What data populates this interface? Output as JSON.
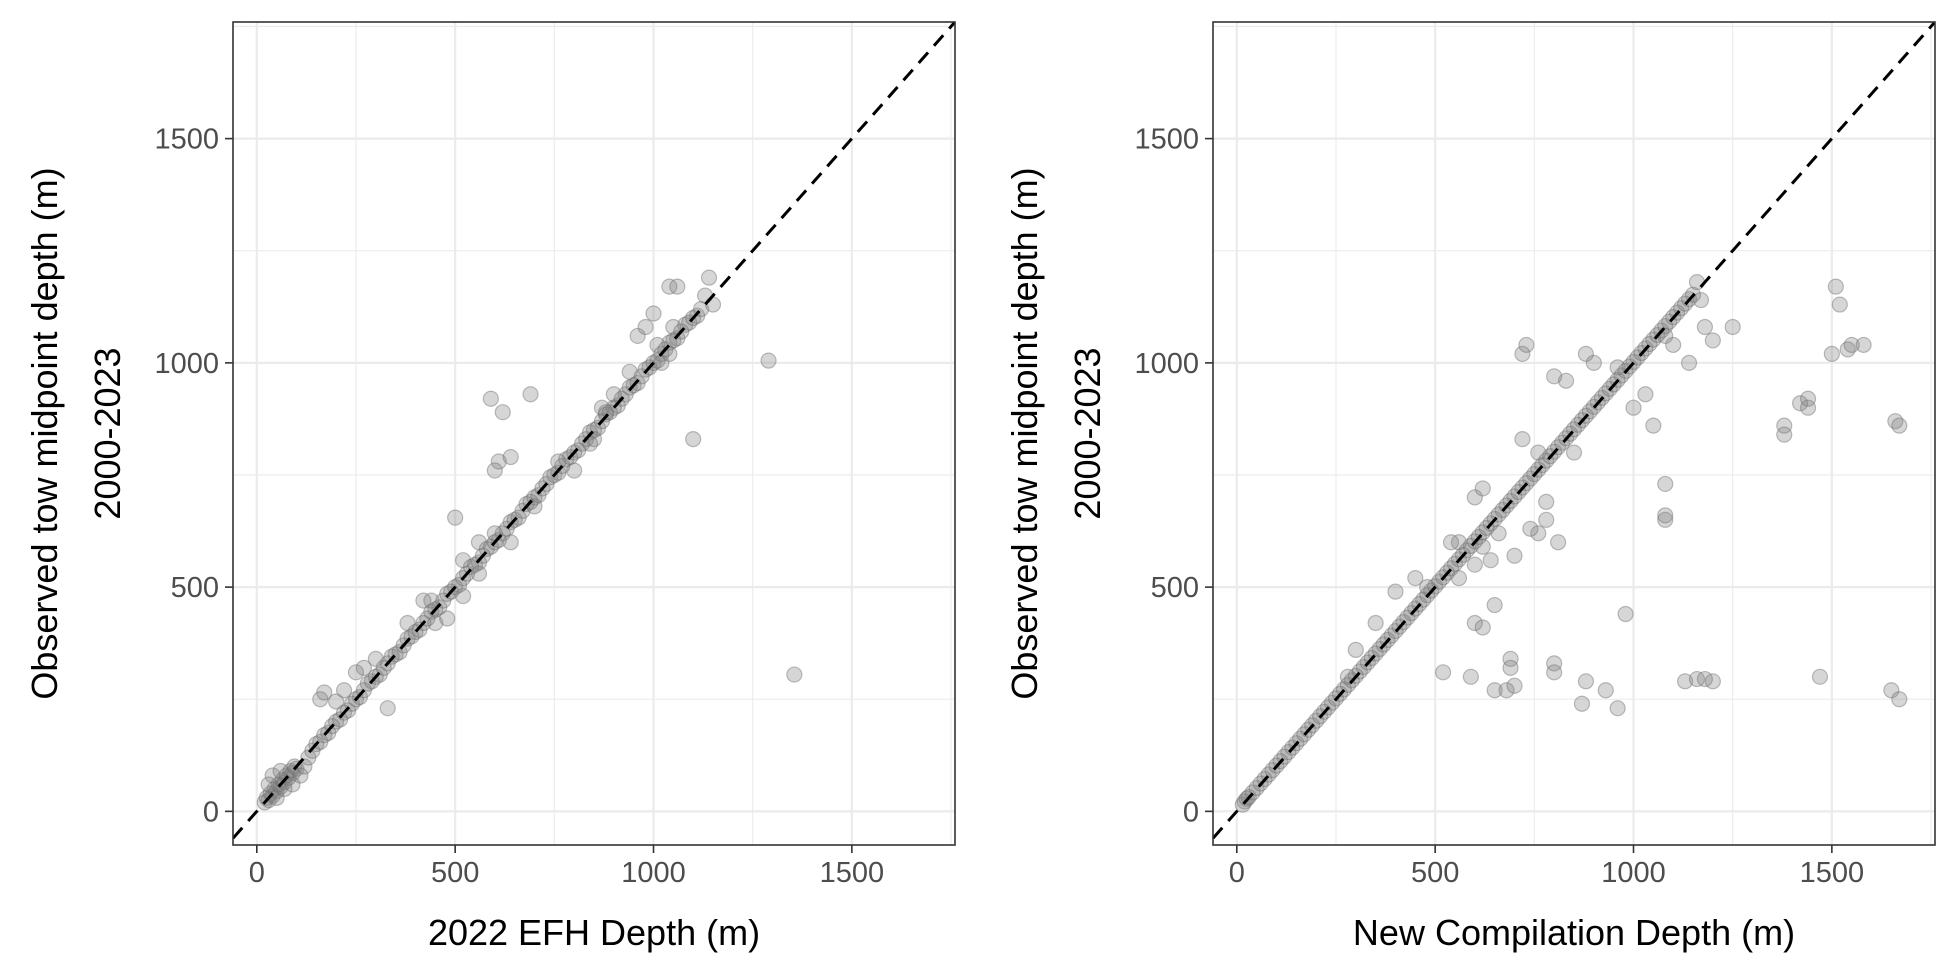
{
  "chart_data": [
    {
      "type": "scatter",
      "title": "",
      "xlabel": "2022 EFH Depth (m)",
      "ylabel_lines": [
        "Observed tow midpoint depth (m)",
        "2000-2023"
      ],
      "xlim": [
        -60,
        1760
      ],
      "ylim": [
        -75,
        1760
      ],
      "xticks": [
        0,
        500,
        1000,
        1500
      ],
      "yticks": [
        0,
        500,
        1000,
        1500
      ],
      "grid": true,
      "reference_line": "y = x (dashed)",
      "point_color": "#808080",
      "points": [
        [
          20,
          20
        ],
        [
          25,
          30
        ],
        [
          30,
          25
        ],
        [
          35,
          40
        ],
        [
          40,
          35
        ],
        [
          45,
          50
        ],
        [
          50,
          45
        ],
        [
          55,
          60
        ],
        [
          60,
          55
        ],
        [
          65,
          70
        ],
        [
          70,
          65
        ],
        [
          75,
          80
        ],
        [
          80,
          75
        ],
        [
          85,
          90
        ],
        [
          90,
          85
        ],
        [
          95,
          100
        ],
        [
          100,
          95
        ],
        [
          30,
          60
        ],
        [
          40,
          80
        ],
        [
          60,
          90
        ],
        [
          50,
          30
        ],
        [
          70,
          50
        ],
        [
          90,
          60
        ],
        [
          110,
          80
        ],
        [
          120,
          100
        ],
        [
          130,
          120
        ],
        [
          140,
          135
        ],
        [
          150,
          150
        ],
        [
          160,
          155
        ],
        [
          170,
          170
        ],
        [
          180,
          175
        ],
        [
          190,
          190
        ],
        [
          200,
          200
        ],
        [
          210,
          205
        ],
        [
          220,
          220
        ],
        [
          230,
          225
        ],
        [
          240,
          240
        ],
        [
          250,
          250
        ],
        [
          200,
          245
        ],
        [
          220,
          270
        ],
        [
          160,
          250
        ],
        [
          170,
          265
        ],
        [
          260,
          255
        ],
        [
          270,
          270
        ],
        [
          280,
          285
        ],
        [
          290,
          290
        ],
        [
          300,
          300
        ],
        [
          310,
          305
        ],
        [
          320,
          320
        ],
        [
          330,
          330
        ],
        [
          340,
          345
        ],
        [
          350,
          350
        ],
        [
          360,
          355
        ],
        [
          370,
          370
        ],
        [
          380,
          385
        ],
        [
          390,
          390
        ],
        [
          400,
          400
        ],
        [
          410,
          405
        ],
        [
          420,
          420
        ],
        [
          430,
          430
        ],
        [
          440,
          445
        ],
        [
          450,
          450
        ],
        [
          460,
          455
        ],
        [
          470,
          470
        ],
        [
          480,
          485
        ],
        [
          490,
          490
        ],
        [
          500,
          500
        ],
        [
          510,
          505
        ],
        [
          520,
          520
        ],
        [
          530,
          530
        ],
        [
          540,
          545
        ],
        [
          550,
          550
        ],
        [
          560,
          555
        ],
        [
          570,
          570
        ],
        [
          580,
          585
        ],
        [
          590,
          590
        ],
        [
          600,
          600
        ],
        [
          610,
          605
        ],
        [
          620,
          620
        ],
        [
          630,
          630
        ],
        [
          640,
          645
        ],
        [
          650,
          650
        ],
        [
          660,
          655
        ],
        [
          670,
          670
        ],
        [
          680,
          685
        ],
        [
          690,
          690
        ],
        [
          700,
          700
        ],
        [
          710,
          705
        ],
        [
          720,
          720
        ],
        [
          730,
          730
        ],
        [
          740,
          745
        ],
        [
          750,
          750
        ],
        [
          760,
          755
        ],
        [
          770,
          770
        ],
        [
          780,
          785
        ],
        [
          790,
          790
        ],
        [
          800,
          800
        ],
        [
          810,
          805
        ],
        [
          820,
          820
        ],
        [
          830,
          830
        ],
        [
          840,
          845
        ],
        [
          850,
          850
        ],
        [
          860,
          855
        ],
        [
          870,
          870
        ],
        [
          880,
          885
        ],
        [
          890,
          890
        ],
        [
          900,
          900
        ],
        [
          910,
          905
        ],
        [
          920,
          920
        ],
        [
          930,
          930
        ],
        [
          940,
          945
        ],
        [
          950,
          950
        ],
        [
          960,
          955
        ],
        [
          970,
          970
        ],
        [
          980,
          985
        ],
        [
          990,
          990
        ],
        [
          1000,
          1000
        ],
        [
          1010,
          1005
        ],
        [
          1020,
          1020
        ],
        [
          1030,
          1030
        ],
        [
          1040,
          1045
        ],
        [
          1050,
          1050
        ],
        [
          1060,
          1055
        ],
        [
          1070,
          1070
        ],
        [
          1080,
          1085
        ],
        [
          1090,
          1090
        ],
        [
          1100,
          1100
        ],
        [
          1110,
          1105
        ],
        [
          1120,
          1120
        ],
        [
          1130,
          1150
        ],
        [
          1140,
          1190
        ],
        [
          1150,
          1130
        ],
        [
          330,
          230
        ],
        [
          500,
          655
        ],
        [
          590,
          920
        ],
        [
          610,
          780
        ],
        [
          640,
          790
        ],
        [
          690,
          930
        ],
        [
          600,
          760
        ],
        [
          620,
          890
        ],
        [
          850,
          830
        ],
        [
          880,
          890
        ],
        [
          960,
          1060
        ],
        [
          980,
          1080
        ],
        [
          1000,
          1110
        ],
        [
          1040,
          1170
        ],
        [
          1060,
          1170
        ],
        [
          1100,
          830
        ],
        [
          1290,
          1005
        ],
        [
          1355,
          305
        ],
        [
          1020,
          1000
        ],
        [
          1040,
          1020
        ],
        [
          1010,
          1040
        ],
        [
          1050,
          1080
        ],
        [
          450,
          420
        ],
        [
          480,
          430
        ],
        [
          520,
          480
        ],
        [
          560,
          530
        ],
        [
          420,
          470
        ],
        [
          380,
          420
        ],
        [
          300,
          340
        ],
        [
          270,
          320
        ],
        [
          250,
          310
        ],
        [
          440,
          470
        ],
        [
          520,
          560
        ],
        [
          560,
          600
        ],
        [
          600,
          620
        ],
        [
          640,
          600
        ],
        [
          700,
          680
        ],
        [
          760,
          780
        ],
        [
          800,
          760
        ],
        [
          840,
          820
        ],
        [
          870,
          900
        ],
        [
          900,
          930
        ],
        [
          940,
          980
        ]
      ]
    },
    {
      "type": "scatter",
      "title": "",
      "xlabel": "New Compilation Depth (m)",
      "ylabel_lines": [
        "Observed tow midpoint depth (m)",
        "2000-2023"
      ],
      "xlim": [
        -60,
        1760
      ],
      "ylim": [
        -75,
        1760
      ],
      "xticks": [
        0,
        500,
        1000,
        1500
      ],
      "yticks": [
        0,
        500,
        1000,
        1500
      ],
      "grid": true,
      "reference_line": "y = x (dashed)",
      "point_color": "#808080",
      "points": [
        [
          15,
          15
        ],
        [
          20,
          22
        ],
        [
          25,
          28
        ],
        [
          30,
          32
        ],
        [
          40,
          42
        ],
        [
          50,
          52
        ],
        [
          60,
          62
        ],
        [
          70,
          72
        ],
        [
          80,
          82
        ],
        [
          90,
          92
        ],
        [
          100,
          102
        ],
        [
          110,
          112
        ],
        [
          120,
          122
        ],
        [
          130,
          132
        ],
        [
          140,
          142
        ],
        [
          150,
          152
        ],
        [
          160,
          162
        ],
        [
          170,
          172
        ],
        [
          180,
          182
        ],
        [
          190,
          192
        ],
        [
          200,
          202
        ],
        [
          210,
          212
        ],
        [
          220,
          222
        ],
        [
          230,
          232
        ],
        [
          240,
          242
        ],
        [
          250,
          252
        ],
        [
          260,
          262
        ],
        [
          270,
          272
        ],
        [
          280,
          282
        ],
        [
          290,
          292
        ],
        [
          300,
          302
        ],
        [
          310,
          312
        ],
        [
          320,
          322
        ],
        [
          330,
          332
        ],
        [
          340,
          342
        ],
        [
          350,
          352
        ],
        [
          360,
          362
        ],
        [
          370,
          372
        ],
        [
          380,
          382
        ],
        [
          390,
          392
        ],
        [
          400,
          402
        ],
        [
          410,
          412
        ],
        [
          420,
          422
        ],
        [
          430,
          432
        ],
        [
          440,
          442
        ],
        [
          450,
          452
        ],
        [
          460,
          462
        ],
        [
          470,
          472
        ],
        [
          480,
          482
        ],
        [
          490,
          492
        ],
        [
          500,
          502
        ],
        [
          510,
          512
        ],
        [
          520,
          522
        ],
        [
          530,
          532
        ],
        [
          540,
          542
        ],
        [
          550,
          552
        ],
        [
          560,
          562
        ],
        [
          570,
          572
        ],
        [
          580,
          582
        ],
        [
          590,
          592
        ],
        [
          600,
          602
        ],
        [
          610,
          612
        ],
        [
          620,
          622
        ],
        [
          630,
          632
        ],
        [
          640,
          642
        ],
        [
          650,
          652
        ],
        [
          660,
          662
        ],
        [
          670,
          672
        ],
        [
          680,
          682
        ],
        [
          690,
          692
        ],
        [
          700,
          702
        ],
        [
          710,
          712
        ],
        [
          720,
          722
        ],
        [
          730,
          732
        ],
        [
          740,
          742
        ],
        [
          750,
          752
        ],
        [
          760,
          762
        ],
        [
          770,
          772
        ],
        [
          780,
          782
        ],
        [
          790,
          792
        ],
        [
          800,
          802
        ],
        [
          810,
          812
        ],
        [
          820,
          822
        ],
        [
          830,
          832
        ],
        [
          840,
          842
        ],
        [
          850,
          852
        ],
        [
          860,
          862
        ],
        [
          870,
          872
        ],
        [
          880,
          882
        ],
        [
          890,
          892
        ],
        [
          900,
          902
        ],
        [
          910,
          912
        ],
        [
          920,
          922
        ],
        [
          930,
          932
        ],
        [
          940,
          942
        ],
        [
          950,
          952
        ],
        [
          960,
          962
        ],
        [
          970,
          972
        ],
        [
          980,
          982
        ],
        [
          990,
          992
        ],
        [
          1000,
          1002
        ],
        [
          1010,
          1012
        ],
        [
          1020,
          1022
        ],
        [
          1030,
          1032
        ],
        [
          1040,
          1042
        ],
        [
          1050,
          1052
        ],
        [
          1060,
          1062
        ],
        [
          1070,
          1072
        ],
        [
          1080,
          1082
        ],
        [
          1090,
          1092
        ],
        [
          1100,
          1102
        ],
        [
          1110,
          1112
        ],
        [
          1120,
          1122
        ],
        [
          1130,
          1132
        ],
        [
          1140,
          1142
        ],
        [
          1150,
          1152
        ],
        [
          1160,
          1180
        ],
        [
          1170,
          1140
        ],
        [
          1200,
          1050
        ],
        [
          1250,
          1080
        ],
        [
          1180,
          1080
        ],
        [
          1080,
          1060
        ],
        [
          1100,
          1040
        ],
        [
          1140,
          1000
        ],
        [
          720,
          1020
        ],
        [
          730,
          1040
        ],
        [
          800,
          970
        ],
        [
          830,
          960
        ],
        [
          880,
          1020
        ],
        [
          900,
          1000
        ],
        [
          960,
          990
        ],
        [
          720,
          830
        ],
        [
          760,
          800
        ],
        [
          850,
          800
        ],
        [
          1000,
          900
        ],
        [
          1030,
          930
        ],
        [
          1050,
          860
        ],
        [
          1080,
          730
        ],
        [
          1080,
          650
        ],
        [
          1080,
          660
        ],
        [
          980,
          440
        ],
        [
          930,
          270
        ],
        [
          960,
          230
        ],
        [
          880,
          290
        ],
        [
          870,
          240
        ],
        [
          800,
          330
        ],
        [
          800,
          310
        ],
        [
          690,
          340
        ],
        [
          690,
          320
        ],
        [
          650,
          460
        ],
        [
          600,
          420
        ],
        [
          590,
          300
        ],
        [
          620,
          410
        ],
        [
          650,
          270
        ],
        [
          680,
          270
        ],
        [
          700,
          280
        ],
        [
          520,
          310
        ],
        [
          760,
          620
        ],
        [
          780,
          650
        ],
        [
          700,
          570
        ],
        [
          740,
          630
        ],
        [
          780,
          690
        ],
        [
          810,
          600
        ],
        [
          1130,
          290
        ],
        [
          1160,
          295
        ],
        [
          1180,
          295
        ],
        [
          1200,
          290
        ],
        [
          1380,
          860
        ],
        [
          1380,
          840
        ],
        [
          1420,
          910
        ],
        [
          1440,
          920
        ],
        [
          1440,
          900
        ],
        [
          1510,
          1170
        ],
        [
          1520,
          1130
        ],
        [
          1500,
          1020
        ],
        [
          1540,
          1030
        ],
        [
          1550,
          1040
        ],
        [
          1580,
          1040
        ],
        [
          1660,
          870
        ],
        [
          1670,
          860
        ],
        [
          1470,
          300
        ],
        [
          1650,
          270
        ],
        [
          1670,
          250
        ],
        [
          600,
          700
        ],
        [
          620,
          720
        ],
        [
          560,
          600
        ],
        [
          540,
          600
        ],
        [
          480,
          500
        ],
        [
          450,
          520
        ],
        [
          400,
          490
        ],
        [
          350,
          420
        ],
        [
          300,
          360
        ],
        [
          280,
          300
        ],
        [
          560,
          520
        ],
        [
          620,
          590
        ],
        [
          640,
          560
        ],
        [
          600,
          550
        ],
        [
          660,
          620
        ]
      ]
    }
  ]
}
